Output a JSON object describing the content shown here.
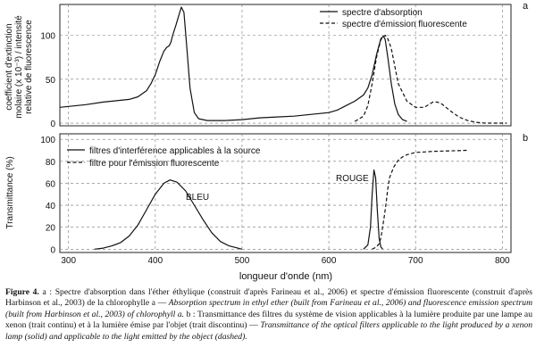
{
  "chart_data": [
    {
      "panel": "a",
      "type": "line",
      "ylabel": "coefficient d'extinction molaire (x 10⁻³) / intensité relative de fluorescence",
      "ylabel_lines": [
        "coefficient d'extinction",
        "molaire (x 10⁻³) / intensité",
        "relative de fluorescence"
      ],
      "xlim": [
        290,
        810
      ],
      "ylim": [
        -3,
        135
      ],
      "yticks": [
        0,
        50,
        100
      ],
      "ytick_labels": [
        "0",
        "50",
        "100"
      ],
      "grid": "dashed",
      "legend_position": "top-right",
      "series": [
        {
          "name": "spectre d'absorption",
          "style": "solid",
          "x": [
            290,
            300,
            320,
            340,
            360,
            370,
            380,
            390,
            395,
            400,
            405,
            410,
            413,
            416,
            418,
            420,
            424,
            427,
            430,
            433,
            436,
            440,
            445,
            450,
            460,
            470,
            480,
            500,
            520,
            540,
            560,
            580,
            600,
            610,
            620,
            630,
            640,
            645,
            650,
            655,
            660,
            663,
            665,
            668,
            672,
            676,
            680,
            685,
            690
          ],
          "y": [
            18,
            19,
            21,
            24,
            26,
            27,
            30,
            37,
            45,
            55,
            70,
            82,
            86,
            88,
            92,
            100,
            112,
            122,
            132,
            126,
            90,
            40,
            12,
            5,
            3,
            3,
            3,
            4,
            6,
            7,
            8,
            10,
            12,
            15,
            20,
            25,
            32,
            40,
            55,
            78,
            96,
            99,
            95,
            75,
            45,
            22,
            10,
            4,
            2
          ]
        },
        {
          "name": "spectre d'émission fluorescente",
          "style": "dashed",
          "x": [
            630,
            640,
            645,
            650,
            655,
            660,
            665,
            668,
            672,
            676,
            680,
            690,
            700,
            710,
            715,
            720,
            725,
            730,
            735,
            740,
            750,
            760,
            770,
            780,
            790,
            800,
            805
          ],
          "y": [
            2,
            8,
            20,
            45,
            75,
            95,
            100,
            96,
            85,
            65,
            45,
            25,
            18,
            18,
            21,
            24,
            24,
            22,
            18,
            14,
            7,
            3,
            1,
            0,
            0,
            0,
            0
          ]
        }
      ],
      "legend": [
        "spectre d'absorption",
        "spectre d'émission fluorescente"
      ],
      "panel_label": "a"
    },
    {
      "panel": "b",
      "type": "line",
      "xlabel": "longueur d'onde (nm)",
      "ylabel": "Transmittance (%)",
      "xlim": [
        290,
        810
      ],
      "xticks": [
        300,
        400,
        500,
        600,
        700,
        800
      ],
      "xtick_labels": [
        "300",
        "400",
        "500",
        "600",
        "700",
        "800"
      ],
      "ylim": [
        -3,
        105
      ],
      "yticks": [
        0,
        20,
        40,
        60,
        80,
        100
      ],
      "ytick_labels": [
        "0",
        "20",
        "40",
        "60",
        "80",
        "100"
      ],
      "grid": "dashed",
      "legend_position": "top-left",
      "series": [
        {
          "name": "filtres d'interférence applicables à la source",
          "style": "solid",
          "segments": [
            {
              "x": [
                330,
                340,
                350,
                360,
                370,
                380,
                390,
                400,
                410,
                417,
                425,
                435,
                445,
                455,
                465,
                475,
                485,
                495,
                500
              ],
              "y": [
                0,
                1,
                3,
                6,
                12,
                22,
                36,
                50,
                60,
                63,
                61,
                53,
                40,
                27,
                15,
                7,
                3,
                1,
                0
              ]
            },
            {
              "x": [
                640,
                645,
                648,
                650,
                652,
                654,
                656,
                658,
                660,
                662
              ],
              "y": [
                0,
                4,
                20,
                50,
                72,
                65,
                35,
                10,
                2,
                0
              ]
            }
          ]
        },
        {
          "name": "filtre pour l'émission fluorescente",
          "style": "dashed",
          "x": [
            650,
            655,
            658,
            660,
            662,
            664,
            666,
            668,
            670,
            675,
            680,
            685,
            690,
            700,
            720,
            740,
            760
          ],
          "y": [
            0,
            2,
            5,
            10,
            20,
            30,
            42,
            55,
            65,
            75,
            81,
            84,
            86,
            88,
            89,
            89.5,
            90
          ]
        }
      ],
      "legend": [
        "filtres d'interférence applicables à la source",
        "filtre pour l'émission fluorescente"
      ],
      "annotations": [
        "BLEU",
        "ROUGE"
      ],
      "panel_label": "b"
    }
  ],
  "caption": {
    "figure_label": "Figure 4.",
    "french_a": " a : Spectre d'absorption dans l'éther éthylique (construit d'après Farineau et al., 2006) et spectre d'émission fluorescente (construit d'après Harbinson et al., 2003) de la chlorophylle a — ",
    "english_a": "Absorption spectrum in ethyl ether (built from Farineau et al., 2006) and fluorescence emission spectrum (built from Harbinson et al., 2003) of chlorophyll a.",
    "french_b": " b : Transmittance des filtres du système de vision applicables à la lumière produite par une lampe au xenon (trait continu) et à la lumière émise par l'objet (trait discontinu) — ",
    "english_b": "Transmittance of the optical filters applicable to the light produced by a xenon lamp (solid) and applicable to the light emitted by the object (dashed)."
  }
}
